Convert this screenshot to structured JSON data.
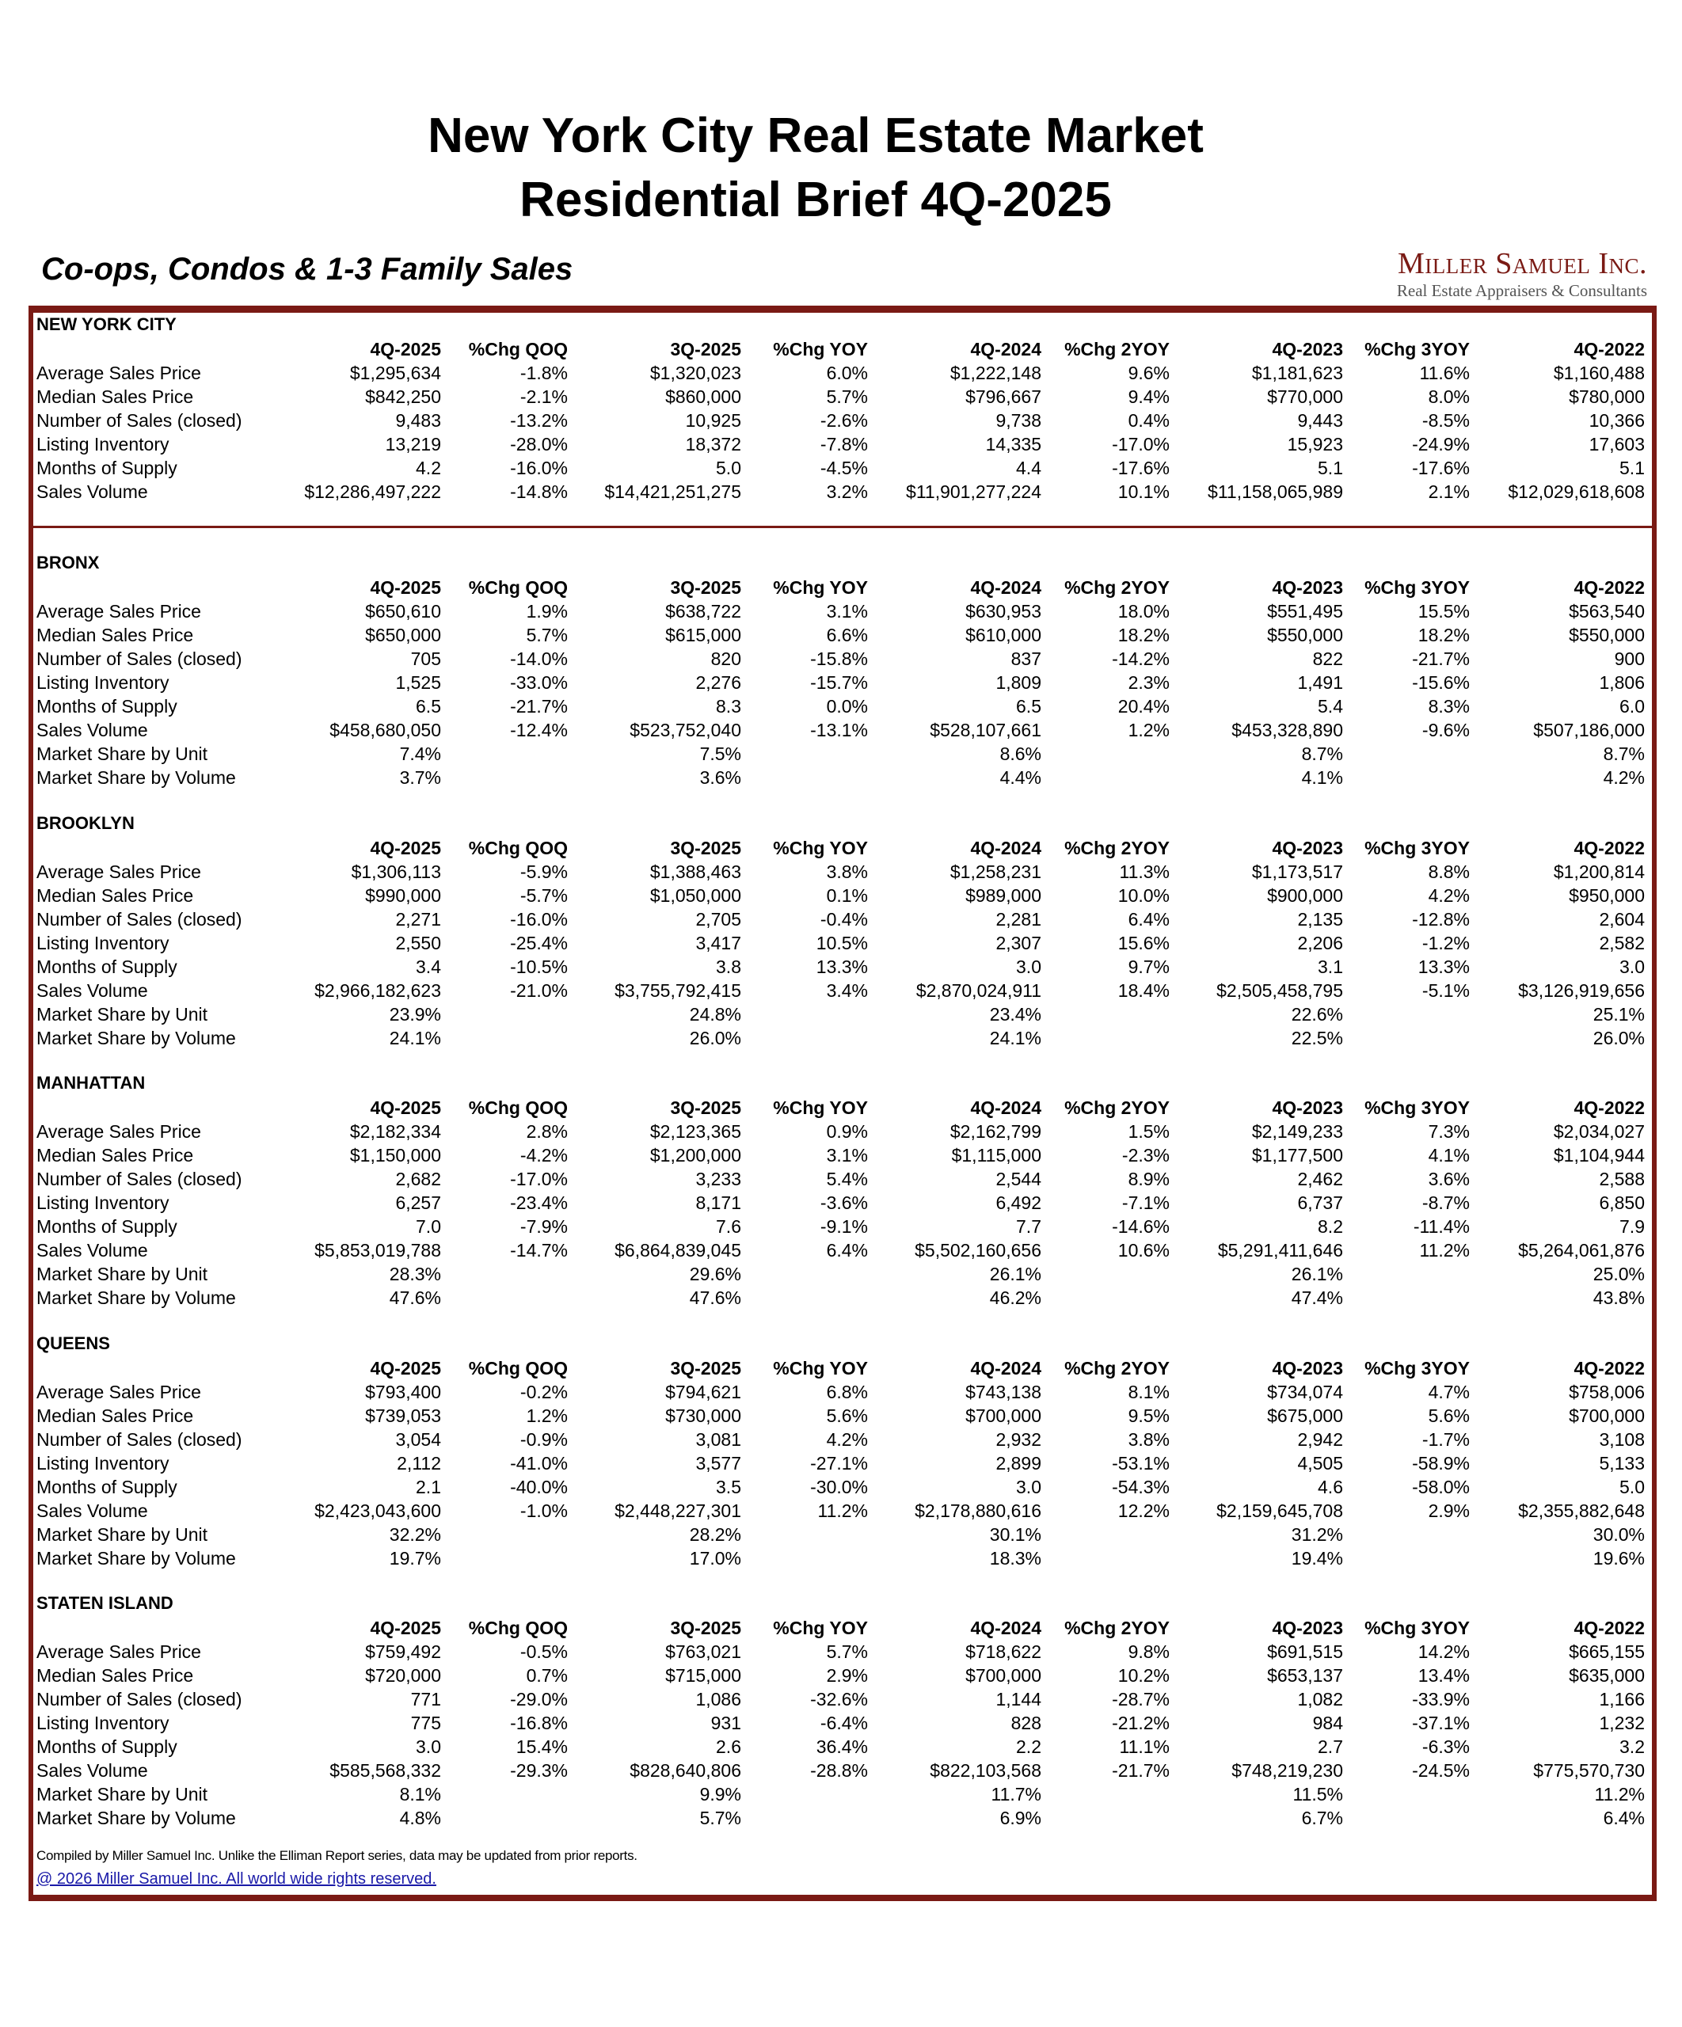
{
  "header": {
    "title_line1": "New York City Real Estate Market",
    "title_line2": "Residential Brief 4Q-2025",
    "subtitle": "Co-ops, Condos & 1-3 Family Sales",
    "logo_name": "Miller Samuel Inc.",
    "logo_tagline": "Real Estate Appraisers & Consultants"
  },
  "columns": [
    "4Q-2025",
    "%Chg QOQ",
    "3Q-2025",
    "%Chg YOY",
    "4Q-2024",
    "%Chg 2YOY",
    "4Q-2023",
    "%Chg 3YOY",
    "4Q-2022"
  ],
  "colors": {
    "frame": "#7a1a14",
    "link": "#1a1aa8"
  },
  "sections": [
    {
      "name": "NEW YORK CITY",
      "rows": [
        {
          "label": "Average Sales Price",
          "values": [
            "$1,295,634",
            "-1.8%",
            "$1,320,023",
            "6.0%",
            "$1,222,148",
            "9.6%",
            "$1,181,623",
            "11.6%",
            "$1,160,488"
          ]
        },
        {
          "label": "Median Sales Price",
          "values": [
            "$842,250",
            "-2.1%",
            "$860,000",
            "5.7%",
            "$796,667",
            "9.4%",
            "$770,000",
            "8.0%",
            "$780,000"
          ]
        },
        {
          "label": "Number of Sales (closed)",
          "values": [
            "9,483",
            "-13.2%",
            "10,925",
            "-2.6%",
            "9,738",
            "0.4%",
            "9,443",
            "-8.5%",
            "10,366"
          ]
        },
        {
          "label": "Listing Inventory",
          "values": [
            "13,219",
            "-28.0%",
            "18,372",
            "-7.8%",
            "14,335",
            "-17.0%",
            "15,923",
            "-24.9%",
            "17,603"
          ]
        },
        {
          "label": "Months of Supply",
          "values": [
            "4.2",
            "-16.0%",
            "5.0",
            "-4.5%",
            "4.4",
            "-17.6%",
            "5.1",
            "-17.6%",
            "5.1"
          ]
        },
        {
          "label": "Sales Volume",
          "values": [
            "$12,286,497,222",
            "-14.8%",
            "$14,421,251,275",
            "3.2%",
            "$11,901,277,224",
            "10.1%",
            "$11,158,065,989",
            "2.1%",
            "$12,029,618,608"
          ]
        }
      ]
    },
    {
      "name": "BRONX",
      "rows": [
        {
          "label": "Average Sales Price",
          "values": [
            "$650,610",
            "1.9%",
            "$638,722",
            "3.1%",
            "$630,953",
            "18.0%",
            "$551,495",
            "15.5%",
            "$563,540"
          ]
        },
        {
          "label": "Median Sales Price",
          "values": [
            "$650,000",
            "5.7%",
            "$615,000",
            "6.6%",
            "$610,000",
            "18.2%",
            "$550,000",
            "18.2%",
            "$550,000"
          ]
        },
        {
          "label": "Number of Sales (closed)",
          "values": [
            "705",
            "-14.0%",
            "820",
            "-15.8%",
            "837",
            "-14.2%",
            "822",
            "-21.7%",
            "900"
          ]
        },
        {
          "label": "Listing Inventory",
          "values": [
            "1,525",
            "-33.0%",
            "2,276",
            "-15.7%",
            "1,809",
            "2.3%",
            "1,491",
            "-15.6%",
            "1,806"
          ]
        },
        {
          "label": "Months of Supply",
          "values": [
            "6.5",
            "-21.7%",
            "8.3",
            "0.0%",
            "6.5",
            "20.4%",
            "5.4",
            "8.3%",
            "6.0"
          ]
        },
        {
          "label": "Sales Volume",
          "values": [
            "$458,680,050",
            "-12.4%",
            "$523,752,040",
            "-13.1%",
            "$528,107,661",
            "1.2%",
            "$453,328,890",
            "-9.6%",
            "$507,186,000"
          ]
        },
        {
          "label": "Market Share by Unit",
          "values": [
            "7.4%",
            "",
            "7.5%",
            "",
            "8.6%",
            "",
            "8.7%",
            "",
            "8.7%"
          ]
        },
        {
          "label": "Market Share by Volume",
          "values": [
            "3.7%",
            "",
            "3.6%",
            "",
            "4.4%",
            "",
            "4.1%",
            "",
            "4.2%"
          ]
        }
      ]
    },
    {
      "name": "BROOKLYN",
      "rows": [
        {
          "label": "Average Sales Price",
          "values": [
            "$1,306,113",
            "-5.9%",
            "$1,388,463",
            "3.8%",
            "$1,258,231",
            "11.3%",
            "$1,173,517",
            "8.8%",
            "$1,200,814"
          ]
        },
        {
          "label": "Median Sales Price",
          "values": [
            "$990,000",
            "-5.7%",
            "$1,050,000",
            "0.1%",
            "$989,000",
            "10.0%",
            "$900,000",
            "4.2%",
            "$950,000"
          ]
        },
        {
          "label": "Number of Sales (closed)",
          "values": [
            "2,271",
            "-16.0%",
            "2,705",
            "-0.4%",
            "2,281",
            "6.4%",
            "2,135",
            "-12.8%",
            "2,604"
          ]
        },
        {
          "label": "Listing Inventory",
          "values": [
            "2,550",
            "-25.4%",
            "3,417",
            "10.5%",
            "2,307",
            "15.6%",
            "2,206",
            "-1.2%",
            "2,582"
          ]
        },
        {
          "label": "Months of Supply",
          "values": [
            "3.4",
            "-10.5%",
            "3.8",
            "13.3%",
            "3.0",
            "9.7%",
            "3.1",
            "13.3%",
            "3.0"
          ]
        },
        {
          "label": "Sales Volume",
          "values": [
            "$2,966,182,623",
            "-21.0%",
            "$3,755,792,415",
            "3.4%",
            "$2,870,024,911",
            "18.4%",
            "$2,505,458,795",
            "-5.1%",
            "$3,126,919,656"
          ]
        },
        {
          "label": "Market Share by Unit",
          "values": [
            "23.9%",
            "",
            "24.8%",
            "",
            "23.4%",
            "",
            "22.6%",
            "",
            "25.1%"
          ]
        },
        {
          "label": "Market Share by Volume",
          "values": [
            "24.1%",
            "",
            "26.0%",
            "",
            "24.1%",
            "",
            "22.5%",
            "",
            "26.0%"
          ]
        }
      ]
    },
    {
      "name": "MANHATTAN",
      "rows": [
        {
          "label": "Average Sales Price",
          "values": [
            "$2,182,334",
            "2.8%",
            "$2,123,365",
            "0.9%",
            "$2,162,799",
            "1.5%",
            "$2,149,233",
            "7.3%",
            "$2,034,027"
          ]
        },
        {
          "label": "Median Sales Price",
          "values": [
            "$1,150,000",
            "-4.2%",
            "$1,200,000",
            "3.1%",
            "$1,115,000",
            "-2.3%",
            "$1,177,500",
            "4.1%",
            "$1,104,944"
          ]
        },
        {
          "label": "Number of Sales (closed)",
          "values": [
            "2,682",
            "-17.0%",
            "3,233",
            "5.4%",
            "2,544",
            "8.9%",
            "2,462",
            "3.6%",
            "2,588"
          ]
        },
        {
          "label": "Listing Inventory",
          "values": [
            "6,257",
            "-23.4%",
            "8,171",
            "-3.6%",
            "6,492",
            "-7.1%",
            "6,737",
            "-8.7%",
            "6,850"
          ]
        },
        {
          "label": "Months of Supply",
          "values": [
            "7.0",
            "-7.9%",
            "7.6",
            "-9.1%",
            "7.7",
            "-14.6%",
            "8.2",
            "-11.4%",
            "7.9"
          ]
        },
        {
          "label": "Sales Volume",
          "values": [
            "$5,853,019,788",
            "-14.7%",
            "$6,864,839,045",
            "6.4%",
            "$5,502,160,656",
            "10.6%",
            "$5,291,411,646",
            "11.2%",
            "$5,264,061,876"
          ]
        },
        {
          "label": "Market Share by Unit",
          "values": [
            "28.3%",
            "",
            "29.6%",
            "",
            "26.1%",
            "",
            "26.1%",
            "",
            "25.0%"
          ]
        },
        {
          "label": "Market Share by Volume",
          "values": [
            "47.6%",
            "",
            "47.6%",
            "",
            "46.2%",
            "",
            "47.4%",
            "",
            "43.8%"
          ]
        }
      ]
    },
    {
      "name": "QUEENS",
      "rows": [
        {
          "label": "Average Sales Price",
          "values": [
            "$793,400",
            "-0.2%",
            "$794,621",
            "6.8%",
            "$743,138",
            "8.1%",
            "$734,074",
            "4.7%",
            "$758,006"
          ]
        },
        {
          "label": "Median Sales Price",
          "values": [
            "$739,053",
            "1.2%",
            "$730,000",
            "5.6%",
            "$700,000",
            "9.5%",
            "$675,000",
            "5.6%",
            "$700,000"
          ]
        },
        {
          "label": "Number of Sales (closed)",
          "values": [
            "3,054",
            "-0.9%",
            "3,081",
            "4.2%",
            "2,932",
            "3.8%",
            "2,942",
            "-1.7%",
            "3,108"
          ]
        },
        {
          "label": "Listing Inventory",
          "values": [
            "2,112",
            "-41.0%",
            "3,577",
            "-27.1%",
            "2,899",
            "-53.1%",
            "4,505",
            "-58.9%",
            "5,133"
          ]
        },
        {
          "label": "Months of Supply",
          "values": [
            "2.1",
            "-40.0%",
            "3.5",
            "-30.0%",
            "3.0",
            "-54.3%",
            "4.6",
            "-58.0%",
            "5.0"
          ]
        },
        {
          "label": "Sales Volume",
          "values": [
            "$2,423,043,600",
            "-1.0%",
            "$2,448,227,301",
            "11.2%",
            "$2,178,880,616",
            "12.2%",
            "$2,159,645,708",
            "2.9%",
            "$2,355,882,648"
          ]
        },
        {
          "label": "Market Share by Unit",
          "values": [
            "32.2%",
            "",
            "28.2%",
            "",
            "30.1%",
            "",
            "31.2%",
            "",
            "30.0%"
          ]
        },
        {
          "label": "Market Share by Volume",
          "values": [
            "19.7%",
            "",
            "17.0%",
            "",
            "18.3%",
            "",
            "19.4%",
            "",
            "19.6%"
          ]
        }
      ]
    },
    {
      "name": "STATEN ISLAND",
      "rows": [
        {
          "label": "Average Sales Price",
          "values": [
            "$759,492",
            "-0.5%",
            "$763,021",
            "5.7%",
            "$718,622",
            "9.8%",
            "$691,515",
            "14.2%",
            "$665,155"
          ]
        },
        {
          "label": "Median Sales Price",
          "values": [
            "$720,000",
            "0.7%",
            "$715,000",
            "2.9%",
            "$700,000",
            "10.2%",
            "$653,137",
            "13.4%",
            "$635,000"
          ]
        },
        {
          "label": "Number of Sales (closed)",
          "values": [
            "771",
            "-29.0%",
            "1,086",
            "-32.6%",
            "1,144",
            "-28.7%",
            "1,082",
            "-33.9%",
            "1,166"
          ]
        },
        {
          "label": "Listing Inventory",
          "values": [
            "775",
            "-16.8%",
            "931",
            "-6.4%",
            "828",
            "-21.2%",
            "984",
            "-37.1%",
            "1,232"
          ]
        },
        {
          "label": "Months of Supply",
          "values": [
            "3.0",
            "15.4%",
            "2.6",
            "36.4%",
            "2.2",
            "11.1%",
            "2.7",
            "-6.3%",
            "3.2"
          ]
        },
        {
          "label": "Sales Volume",
          "values": [
            "$585,568,332",
            "-29.3%",
            "$828,640,806",
            "-28.8%",
            "$822,103,568",
            "-21.7%",
            "$748,219,230",
            "-24.5%",
            "$775,570,730"
          ]
        },
        {
          "label": "Market Share by Unit",
          "values": [
            "8.1%",
            "",
            "9.9%",
            "",
            "11.7%",
            "",
            "11.5%",
            "",
            "11.2%"
          ]
        },
        {
          "label": "Market Share by Volume",
          "values": [
            "4.8%",
            "",
            "5.7%",
            "",
            "6.9%",
            "",
            "6.7%",
            "",
            "6.4%"
          ]
        }
      ]
    }
  ],
  "footer": {
    "note": "Compiled by Miller Samuel Inc. Unlike the Elliman Report series, data may be updated from prior reports.",
    "copyright": "@ 2026 Miller Samuel Inc. All world wide rights reserved."
  }
}
